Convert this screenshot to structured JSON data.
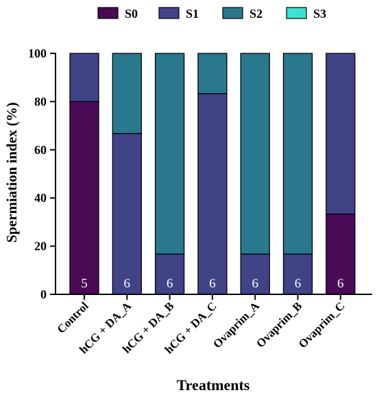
{
  "chart_data": {
    "type": "bar",
    "stacked": true,
    "title": "",
    "xlabel": "Treatments",
    "ylabel": "Spermiation index (%)",
    "ylim": [
      0,
      100
    ],
    "yticks": [
      0,
      20,
      40,
      60,
      80,
      100
    ],
    "grid": false,
    "legend": "top",
    "categories": [
      "Control",
      "hCG + DA_A",
      "hCG + DA_B",
      "hCG + DA_C",
      "Ovaprim_A",
      "Ovaprim_B",
      "Ovaprim_C"
    ],
    "n_labels": [
      "5",
      "6",
      "6",
      "6",
      "6",
      "6",
      "6"
    ],
    "series": [
      {
        "name": "S0",
        "color": "#4a0a55",
        "values": [
          80,
          0,
          0,
          0,
          0,
          0,
          33.3
        ]
      },
      {
        "name": "S1",
        "color": "#414387",
        "values": [
          20,
          66.7,
          16.7,
          83.3,
          16.7,
          16.7,
          66.7
        ]
      },
      {
        "name": "S2",
        "color": "#2a788e",
        "values": [
          0,
          33.3,
          83.3,
          16.7,
          83.3,
          83.3,
          0
        ]
      },
      {
        "name": "S3",
        "color": "#40e0d0",
        "values": [
          0,
          0,
          0,
          0,
          0,
          0,
          0
        ]
      }
    ]
  }
}
